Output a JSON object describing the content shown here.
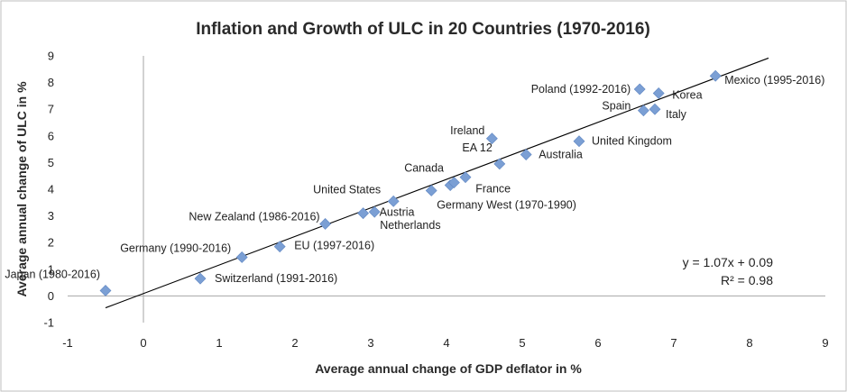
{
  "chart_data": {
    "type": "scatter",
    "title": "Inflation and Growth of ULC in 20 Countries (1970-2016)",
    "xlabel": "Average annual change of GDP deflator in %",
    "ylabel": "Average annual change of ULC in %",
    "xlim": [
      -1,
      9
    ],
    "ylim": [
      -1,
      9
    ],
    "xticks": [
      "-1",
      "0",
      "1",
      "2",
      "3",
      "4",
      "5",
      "6",
      "7",
      "8",
      "9"
    ],
    "yticks": [
      "-1",
      "0",
      "1",
      "2",
      "3",
      "4",
      "5",
      "6",
      "7",
      "8",
      "9"
    ],
    "grid": false,
    "legend": "none",
    "marker_color": "#7b9fd4",
    "trendline_color": "#000000",
    "points": [
      {
        "x": -0.5,
        "y": 0.2,
        "label": "Japan (1980-2016)",
        "anchor": "end",
        "dx": -6,
        "dy": -14
      },
      {
        "x": 0.75,
        "y": 0.65,
        "label": "Switzerland (1991-2016)",
        "anchor": "start",
        "dx": 16,
        "dy": 4
      },
      {
        "x": 1.3,
        "y": 1.45,
        "label": "Germany (1990-2016)",
        "anchor": "end",
        "dx": -12,
        "dy": -6
      },
      {
        "x": 1.8,
        "y": 1.85,
        "label": "EU (1997-2016)",
        "anchor": "start",
        "dx": 16,
        "dy": 3
      },
      {
        "x": 2.4,
        "y": 2.7,
        "label": "New Zealand (1986-2016)",
        "anchor": "end",
        "dx": -6,
        "dy": -4
      },
      {
        "x": 2.9,
        "y": 3.1,
        "label": "Austria",
        "anchor": "start",
        "dx": 18,
        "dy": 3
      },
      {
        "x": 3.05,
        "y": 3.15,
        "label": "Netherlands",
        "anchor": "start",
        "dx": 6,
        "dy": 19
      },
      {
        "x": 3.3,
        "y": 3.55,
        "label": "United States",
        "anchor": "end",
        "dx": -14,
        "dy": -9
      },
      {
        "x": 3.8,
        "y": 3.95,
        "label": "Germany West (1970-1990)",
        "anchor": "start",
        "dx": 6,
        "dy": 20
      },
      {
        "x": 4.05,
        "y": 4.15,
        "label": "France",
        "anchor": "start",
        "dx": 28,
        "dy": 8
      },
      {
        "x": 4.1,
        "y": 4.25,
        "label": "",
        "anchor": "start",
        "dx": 0,
        "dy": 0
      },
      {
        "x": 4.25,
        "y": 4.45,
        "label": "Canada",
        "anchor": "end",
        "dx": -24,
        "dy": -6
      },
      {
        "x": 4.7,
        "y": 4.95,
        "label": "EA 12",
        "anchor": "end",
        "dx": -8,
        "dy": -14
      },
      {
        "x": 5.05,
        "y": 5.3,
        "label": "Australia",
        "anchor": "start",
        "dx": 14,
        "dy": 4
      },
      {
        "x": 4.6,
        "y": 5.9,
        "label": "Ireland",
        "anchor": "end",
        "dx": -8,
        "dy": -5
      },
      {
        "x": 5.75,
        "y": 5.8,
        "label": "United Kingdom",
        "anchor": "start",
        "dx": 14,
        "dy": 4
      },
      {
        "x": 6.6,
        "y": 6.95,
        "label": "Spain",
        "anchor": "end",
        "dx": -14,
        "dy": -1
      },
      {
        "x": 6.75,
        "y": 7.0,
        "label": "Italy",
        "anchor": "start",
        "dx": 12,
        "dy": 10
      },
      {
        "x": 6.55,
        "y": 7.75,
        "label": "Poland (1992-2016)",
        "anchor": "end",
        "dx": -10,
        "dy": 4
      },
      {
        "x": 6.8,
        "y": 7.6,
        "label": "Korea",
        "anchor": "start",
        "dx": 15,
        "dy": 6
      },
      {
        "x": 7.55,
        "y": 8.25,
        "label": "Mexico (1995-2016)",
        "anchor": "start",
        "dx": 10,
        "dy": 9
      }
    ],
    "trendline": {
      "slope": 1.07,
      "intercept": 0.09,
      "x_start": -0.5,
      "x_end": 8.25
    },
    "annotations": {
      "equation": "y = 1.07x + 0.09",
      "r_squared": "R² = 0.98"
    }
  }
}
